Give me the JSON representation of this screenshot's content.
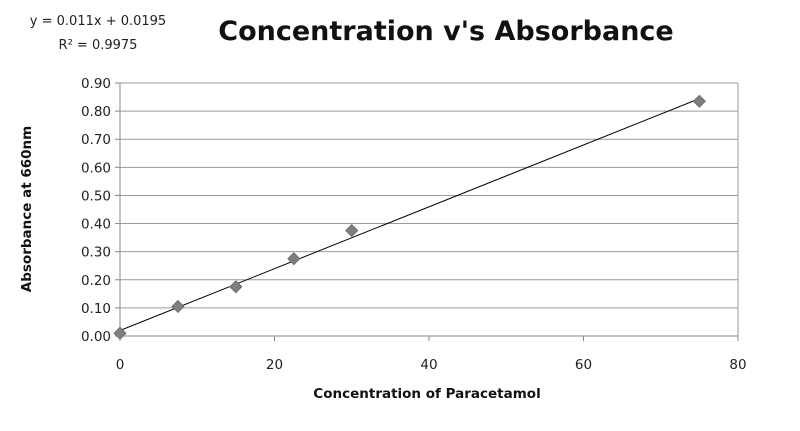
{
  "chart_data": {
    "type": "scatter",
    "title": "Concentration v's Absorbance",
    "xlabel": "Concentration of Paracetamol",
    "ylabel": "Absorbance at 660nm",
    "xlim": [
      0,
      80
    ],
    "ylim": [
      0,
      0.9
    ],
    "x_ticks": [
      "0",
      "20",
      "40",
      "60",
      "80"
    ],
    "y_ticks": [
      "0.00",
      "0.10",
      "0.20",
      "0.30",
      "0.40",
      "0.50",
      "0.60",
      "0.70",
      "0.80",
      "0.90"
    ],
    "grid": true,
    "legend": "none",
    "series": [
      {
        "x": [
          0,
          7.5,
          15,
          22.5,
          30,
          75
        ],
        "y": [
          0.01,
          0.105,
          0.175,
          0.275,
          0.375,
          0.835
        ],
        "marker": "diamond",
        "color": "#7f7f7f"
      }
    ],
    "trendline": {
      "type": "linear",
      "slope": 0.011,
      "intercept": 0.0195,
      "equation": "y = 0.011x + 0.0195",
      "r_squared": "R² = 0.9975",
      "color": "#000000"
    }
  }
}
